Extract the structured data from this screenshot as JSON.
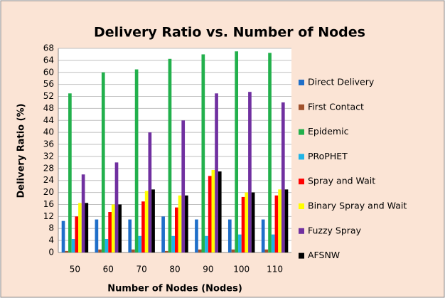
{
  "chart_data": {
    "type": "bar",
    "title": "Delivery Ratio vs. Number of Nodes",
    "x_label": "Number of Nodes (Nodes)",
    "y_label": "Delivery Ratio (%)",
    "categories": [
      "50",
      "60",
      "70",
      "80",
      "90",
      "100",
      "110"
    ],
    "series": [
      {
        "name": "Direct Delivery",
        "color": "#1f6fc9",
        "values": [
          10.5,
          11,
          11,
          12,
          11,
          11,
          11
        ]
      },
      {
        "name": "First Contact",
        "color": "#a0522d",
        "values": [
          0.5,
          1,
          1,
          0.5,
          1,
          1,
          1
        ]
      },
      {
        "name": "Epidemic",
        "color": "#22b04c",
        "values": [
          53,
          60,
          61,
          64.5,
          66,
          67,
          66.5
        ]
      },
      {
        "name": "PRoPHET",
        "color": "#1fb4e6",
        "values": [
          4.5,
          4.5,
          5.5,
          5.5,
          5.5,
          6,
          6
        ]
      },
      {
        "name": "Spray and Wait",
        "color": "#ff0000",
        "values": [
          12,
          13.5,
          17,
          15,
          25.5,
          18.5,
          19
        ]
      },
      {
        "name": "Binary Spray and Wait",
        "color": "#ffff00",
        "values": [
          16.5,
          16,
          20.5,
          19,
          27.5,
          20,
          21
        ]
      },
      {
        "name": "Fuzzy Spray",
        "color": "#7030a0",
        "values": [
          26,
          30,
          40,
          44,
          53,
          53.5,
          50
        ]
      },
      {
        "name": "AFSNW",
        "color": "#000000",
        "values": [
          16.5,
          16,
          21,
          19,
          27,
          20,
          21
        ]
      }
    ],
    "ylim": [
      0,
      68
    ],
    "yticks": [
      0,
      4,
      8,
      12,
      16,
      20,
      24,
      28,
      32,
      36,
      40,
      44,
      48,
      52,
      56,
      60,
      64,
      68
    ],
    "grid": true,
    "legend": "right"
  }
}
